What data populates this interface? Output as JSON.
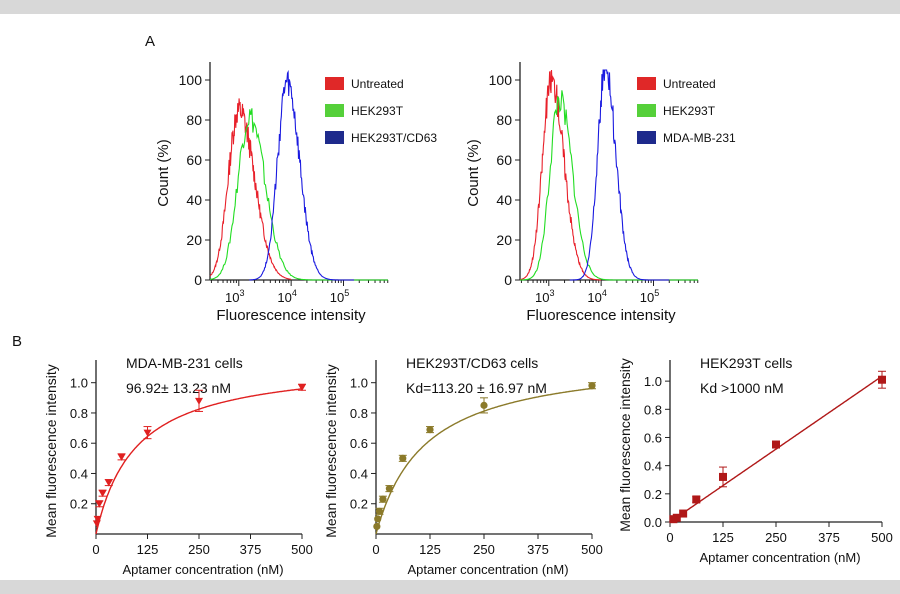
{
  "panel_labels": {
    "a": "A",
    "b": "B"
  },
  "chart_data": [
    {
      "type": "line",
      "subtype": "flow-cytometry-histogram",
      "panel": "A-left",
      "xlabel": "Fluorescence intensity",
      "ylabel": "Count (%)",
      "xscale": "log",
      "xlim_log10": [
        2.45,
        5.85
      ],
      "x_ticks": [
        {
          "base": "10",
          "exp": "3"
        },
        {
          "base": "10",
          "exp": "4"
        },
        {
          "base": "10",
          "exp": "5"
        }
      ],
      "ylim": [
        0,
        100
      ],
      "y_ticks": [
        "0",
        "20",
        "40",
        "60",
        "80",
        "100"
      ],
      "legend": [
        {
          "name": "Untreated",
          "color": "#e02828"
        },
        {
          "name": "HEK293T",
          "color": "#55d03a"
        },
        {
          "name": "HEK293T/CD63",
          "color": "#1e2a8c"
        }
      ],
      "series": [
        {
          "name": "Untreated",
          "color": "#e8202a",
          "peak_log10": 3.0,
          "peak_count": 85,
          "sigma_left": 0.2,
          "sigma_right": 0.3,
          "range_log10": [
            2.45,
            4.0
          ]
        },
        {
          "name": "HEK293T",
          "color": "#22dd22",
          "peak_log10": 3.2,
          "peak_count": 82,
          "sigma_left": 0.22,
          "sigma_right": 0.3,
          "range_log10": [
            2.45,
            5.85
          ]
        },
        {
          "name": "HEK293T/CD63",
          "color": "#1a1ae0",
          "peak_log10": 3.92,
          "peak_count": 98,
          "sigma_left": 0.18,
          "sigma_right": 0.24,
          "range_log10": [
            3.2,
            5.2
          ]
        }
      ]
    },
    {
      "type": "line",
      "subtype": "flow-cytometry-histogram",
      "panel": "A-right",
      "xlabel": "Fluorescence intensity",
      "ylabel": "Count (%)",
      "xscale": "log",
      "xlim_log10": [
        2.45,
        5.85
      ],
      "x_ticks": [
        {
          "base": "10",
          "exp": "3"
        },
        {
          "base": "10",
          "exp": "4"
        },
        {
          "base": "10",
          "exp": "5"
        }
      ],
      "ylim": [
        0,
        100
      ],
      "y_ticks": [
        "0",
        "20",
        "40",
        "60",
        "80",
        "100"
      ],
      "legend": [
        {
          "name": "Untreated",
          "color": "#e02828"
        },
        {
          "name": "HEK293T",
          "color": "#55d03a"
        },
        {
          "name": "MDA-MB-231",
          "color": "#1e2a8c"
        }
      ],
      "series": [
        {
          "name": "Untreated",
          "color": "#e8202a",
          "peak_log10": 3.05,
          "peak_count": 100,
          "sigma_left": 0.17,
          "sigma_right": 0.24,
          "range_log10": [
            2.45,
            4.0
          ]
        },
        {
          "name": "HEK293T",
          "color": "#22dd22",
          "peak_log10": 3.2,
          "peak_count": 90,
          "sigma_left": 0.18,
          "sigma_right": 0.25,
          "range_log10": [
            2.45,
            5.85
          ]
        },
        {
          "name": "MDA-MB-231",
          "color": "#1a1ae0",
          "peak_log10": 4.08,
          "peak_count": 106,
          "sigma_left": 0.15,
          "sigma_right": 0.2,
          "range_log10": [
            3.4,
            5.3
          ]
        }
      ]
    },
    {
      "type": "scatter",
      "fit": "one-site binding (hyperbola)",
      "panel": "B-left",
      "annotation": [
        "MDA-MB-231 cells",
        "96.92± 13.23 nM"
      ],
      "xlabel": "Aptamer concentration (nM)",
      "ylabel": "Mean fluorescence intensity",
      "xlim": [
        0,
        500
      ],
      "ylim": [
        0,
        1.15
      ],
      "x_ticks": [
        "0",
        "125",
        "250",
        "375",
        "500"
      ],
      "y_ticks": [
        "0.2",
        "0.4",
        "0.6",
        "0.8",
        "1.0"
      ],
      "marker": "triangle-down",
      "color": "#e02020",
      "fit_params": {
        "bmax": 1.145,
        "kd": 96.92
      },
      "points": [
        {
          "x": 2,
          "y": 0.07,
          "err": 0.01
        },
        {
          "x": 4,
          "y": 0.1,
          "err": 0.01
        },
        {
          "x": 8,
          "y": 0.2,
          "err": 0.02
        },
        {
          "x": 16,
          "y": 0.27,
          "err": 0.02
        },
        {
          "x": 31,
          "y": 0.34,
          "err": 0.02
        },
        {
          "x": 62,
          "y": 0.51,
          "err": 0.02
        },
        {
          "x": 125,
          "y": 0.67,
          "err": 0.04
        },
        {
          "x": 250,
          "y": 0.88,
          "err": 0.07
        },
        {
          "x": 500,
          "y": 0.97,
          "err": 0.02
        }
      ]
    },
    {
      "type": "scatter",
      "fit": "one-site binding (hyperbola)",
      "panel": "B-middle",
      "annotation": [
        "HEK293T/CD63 cells",
        "Kd=113.20 ± 16.97 nM"
      ],
      "xlabel": "Aptamer concentration (nM)",
      "ylabel": "Mean fluorescence intensity",
      "xlim": [
        0,
        500
      ],
      "ylim": [
        0,
        1.15
      ],
      "x_ticks": [
        "0",
        "125",
        "250",
        "375",
        "500"
      ],
      "y_ticks": [
        "0.2",
        "0.4",
        "0.6",
        "0.8",
        "1.0"
      ],
      "marker": "circle",
      "color": "#8b7a2a",
      "fit_params": {
        "bmax": 1.18,
        "kd": 113.2
      },
      "points": [
        {
          "x": 2,
          "y": 0.05,
          "err": 0.01
        },
        {
          "x": 4,
          "y": 0.1,
          "err": 0.01
        },
        {
          "x": 8,
          "y": 0.15,
          "err": 0.02
        },
        {
          "x": 16,
          "y": 0.23,
          "err": 0.02
        },
        {
          "x": 31,
          "y": 0.3,
          "err": 0.02
        },
        {
          "x": 62,
          "y": 0.5,
          "err": 0.02
        },
        {
          "x": 125,
          "y": 0.69,
          "err": 0.02
        },
        {
          "x": 250,
          "y": 0.85,
          "err": 0.05
        },
        {
          "x": 500,
          "y": 0.98,
          "err": 0.02
        }
      ]
    },
    {
      "type": "scatter",
      "fit": "linear",
      "panel": "B-right",
      "annotation": [
        "HEK293T cells",
        "Kd >1000 nM"
      ],
      "xlabel": "Aptamer concentration (nM)",
      "ylabel": "Mean fluorescence intensity",
      "xlim": [
        0,
        500
      ],
      "ylim": [
        0,
        1.15
      ],
      "x_ticks": [
        "0",
        "125",
        "250",
        "375",
        "500"
      ],
      "y_ticks": [
        "0.0",
        "0.2",
        "0.4",
        "0.6",
        "0.8",
        "1.0"
      ],
      "marker": "square",
      "color": "#b01818",
      "fit_params": {
        "slope": 0.00207,
        "intercept": 0.0
      },
      "points": [
        {
          "x": 8,
          "y": 0.02,
          "err": 0.005
        },
        {
          "x": 16,
          "y": 0.03,
          "err": 0.005
        },
        {
          "x": 31,
          "y": 0.06,
          "err": 0.01
        },
        {
          "x": 62,
          "y": 0.16,
          "err": 0.02
        },
        {
          "x": 125,
          "y": 0.32,
          "err": 0.07
        },
        {
          "x": 250,
          "y": 0.55,
          "err": 0.02
        },
        {
          "x": 500,
          "y": 1.01,
          "err": 0.06
        }
      ]
    }
  ]
}
